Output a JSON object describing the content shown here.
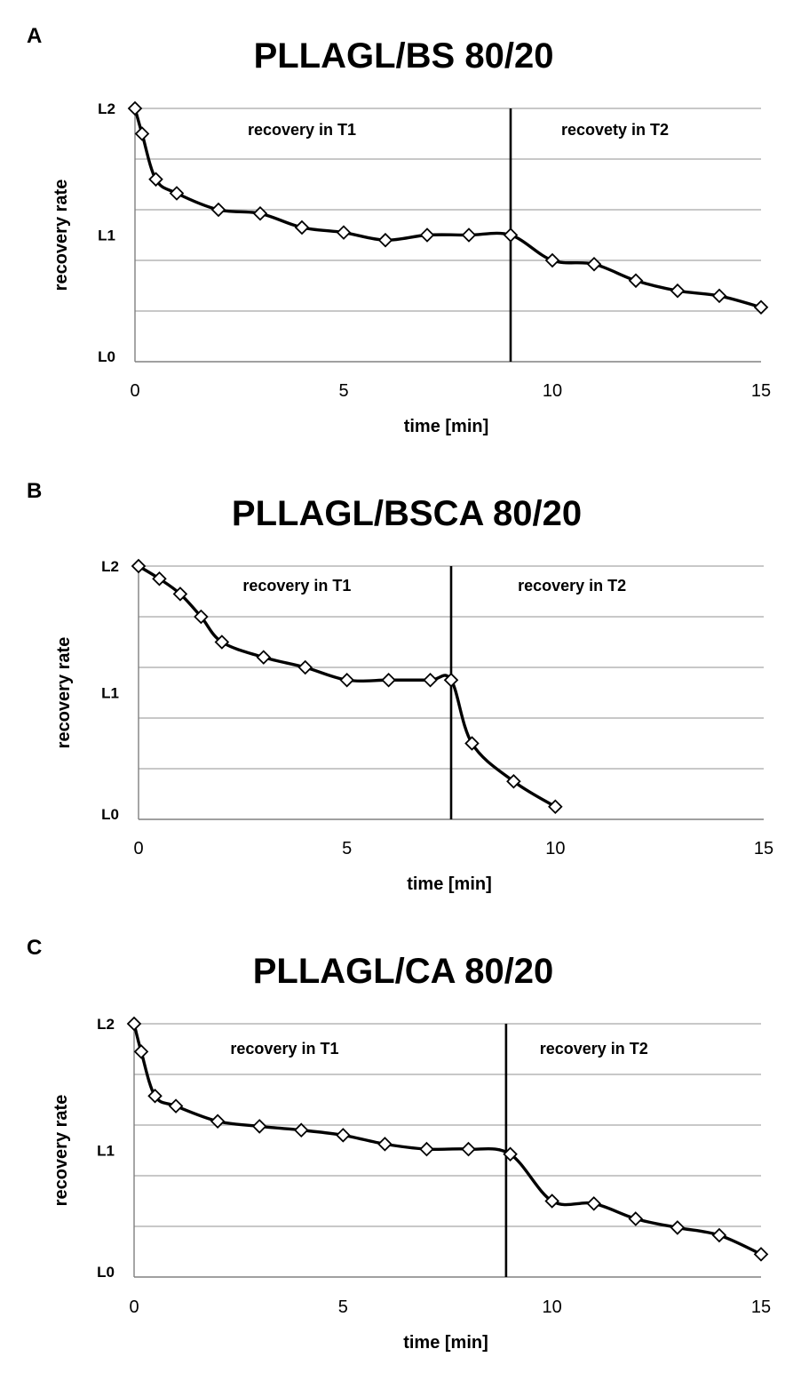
{
  "figure": {
    "panels": [
      "A",
      "B",
      "C"
    ]
  },
  "chart_data": [
    {
      "panel": "A",
      "type": "line",
      "title": "PLLAGL/BS 80/20",
      "xlabel": "time [min]",
      "ylabel": "recovery rate",
      "xlim": [
        0,
        15
      ],
      "ylim": [
        0,
        2
      ],
      "xticks": [
        0,
        5,
        10,
        15
      ],
      "yticks": [
        {
          "value": 0,
          "label": "L0"
        },
        {
          "value": 1,
          "label": "L1"
        },
        {
          "value": 2,
          "label": "L2"
        }
      ],
      "grid_y": [
        0.4,
        0.8,
        1.2,
        1.6,
        2.0
      ],
      "divider_x": 9,
      "regions": [
        {
          "label": "recovery in T1",
          "x": 4
        },
        {
          "label": "recovety in T2",
          "x": 11.5
        }
      ],
      "series": [
        {
          "name": "recovery",
          "x": [
            0,
            0.17,
            0.5,
            1,
            2,
            3,
            4,
            5,
            6,
            7,
            8,
            9,
            10,
            11,
            12,
            13,
            14,
            15
          ],
          "y": [
            2.0,
            1.8,
            1.44,
            1.33,
            1.2,
            1.17,
            1.06,
            1.02,
            0.96,
            1.0,
            1.0,
            1.0,
            0.8,
            0.77,
            0.64,
            0.56,
            0.52,
            0.43
          ]
        }
      ]
    },
    {
      "panel": "B",
      "type": "line",
      "title": "PLLAGL/BSCA 80/20",
      "xlabel": "time [min]",
      "ylabel": "recovery rate",
      "xlim": [
        0,
        15
      ],
      "ylim": [
        0,
        2
      ],
      "xticks": [
        0,
        5,
        10,
        15
      ],
      "yticks": [
        {
          "value": 0,
          "label": "L0"
        },
        {
          "value": 1,
          "label": "L1"
        },
        {
          "value": 2,
          "label": "L2"
        }
      ],
      "grid_y": [
        0.4,
        0.8,
        1.2,
        1.6,
        2.0
      ],
      "divider_x": 7.5,
      "regions": [
        {
          "label": "recovery in T1",
          "x": 3.8
        },
        {
          "label": "recovery in T2",
          "x": 10.4
        }
      ],
      "series": [
        {
          "name": "recovery",
          "x": [
            0,
            0.5,
            1,
            1.5,
            2,
            3,
            4,
            5,
            6,
            7,
            7.5,
            8,
            9,
            10
          ],
          "y": [
            2.0,
            1.9,
            1.78,
            1.6,
            1.4,
            1.28,
            1.2,
            1.1,
            1.1,
            1.1,
            1.1,
            0.6,
            0.3,
            0.1
          ]
        }
      ]
    },
    {
      "panel": "C",
      "type": "line",
      "title": "PLLAGL/CA 80/20",
      "xlabel": "time [min]",
      "ylabel": "recovery rate",
      "xlim": [
        0,
        15
      ],
      "ylim": [
        0,
        2
      ],
      "xticks": [
        0,
        5,
        10,
        15
      ],
      "yticks": [
        {
          "value": 0,
          "label": "L0"
        },
        {
          "value": 1,
          "label": "L1"
        },
        {
          "value": 2,
          "label": "L2"
        }
      ],
      "grid_y": [
        0.4,
        0.8,
        1.2,
        1.6,
        2.0
      ],
      "divider_x": 8.9,
      "regions": [
        {
          "label": "recovery in T1",
          "x": 3.6
        },
        {
          "label": "recovery in T2",
          "x": 11
        }
      ],
      "series": [
        {
          "name": "recovery",
          "x": [
            0,
            0.17,
            0.5,
            1,
            2,
            3,
            4,
            5,
            6,
            7,
            8,
            9,
            10,
            11,
            12,
            13,
            14,
            15
          ],
          "y": [
            2.0,
            1.78,
            1.43,
            1.35,
            1.23,
            1.19,
            1.16,
            1.12,
            1.05,
            1.01,
            1.01,
            0.97,
            0.6,
            0.58,
            0.46,
            0.39,
            0.33,
            0.18
          ]
        }
      ]
    }
  ]
}
